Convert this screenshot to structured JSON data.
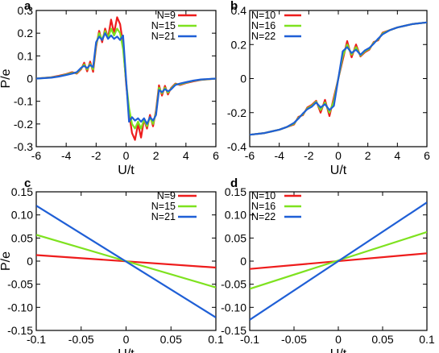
{
  "chart_data": [
    {
      "panel": "a",
      "type": "line",
      "xlabel": "U/t",
      "ylabel": "P/e",
      "xlim": [
        -6,
        6
      ],
      "ylim": [
        -0.3,
        0.3
      ],
      "xticks": [
        -6,
        -4,
        -2,
        0,
        2,
        4,
        6
      ],
      "yticks": [
        -0.3,
        -0.2,
        -0.1,
        0,
        0.1,
        0.2,
        0.3
      ],
      "ytick_labels": [
        "-0.3",
        "-0.2",
        "-0.1",
        "0",
        "0.1",
        "0.2",
        "0.3"
      ],
      "legend_position": "top-right",
      "series": [
        {
          "name": "N=9",
          "color": "#ee1c1c",
          "x": [
            -6,
            -5,
            -4.5,
            -4,
            -3.6,
            -3.3,
            -3,
            -2.8,
            -2.6,
            -2.4,
            -2.2,
            -2,
            -1.8,
            -1.6,
            -1.4,
            -1.2,
            -1,
            -0.8,
            -0.6,
            -0.4,
            -0.2,
            0,
            0.2,
            0.4,
            0.6,
            0.8,
            1,
            1.2,
            1.4,
            1.6,
            1.8,
            2,
            2.2,
            2.4,
            2.6,
            2.8,
            3,
            3.3,
            3.6,
            4,
            4.5,
            5,
            6
          ],
          "y": [
            0.0,
            0.006,
            0.012,
            0.02,
            0.028,
            0.022,
            0.042,
            0.07,
            0.032,
            0.075,
            0.03,
            0.14,
            0.21,
            0.16,
            0.22,
            0.18,
            0.26,
            0.2,
            0.27,
            0.24,
            0.15,
            -0.02,
            -0.15,
            -0.24,
            -0.27,
            -0.2,
            -0.26,
            -0.18,
            -0.22,
            -0.16,
            -0.21,
            -0.14,
            -0.03,
            -0.075,
            -0.032,
            -0.07,
            -0.042,
            -0.022,
            -0.028,
            -0.02,
            -0.012,
            -0.006,
            0.0
          ]
        },
        {
          "name": "N=15",
          "color": "#7ee21f",
          "x": [
            -6,
            -5,
            -4.5,
            -4,
            -3.6,
            -3.3,
            -3,
            -2.8,
            -2.6,
            -2.4,
            -2.2,
            -2,
            -1.8,
            -1.6,
            -1.4,
            -1.2,
            -1,
            -0.8,
            -0.6,
            -0.4,
            -0.2,
            0,
            0.2,
            0.4,
            0.6,
            0.8,
            1,
            1.2,
            1.4,
            1.6,
            1.8,
            2,
            2.2,
            2.4,
            2.6,
            2.8,
            3,
            3.3,
            3.6,
            4,
            4.5,
            5,
            6
          ],
          "y": [
            0.0,
            0.005,
            0.01,
            0.018,
            0.025,
            0.025,
            0.045,
            0.062,
            0.04,
            0.065,
            0.04,
            0.15,
            0.2,
            0.17,
            0.21,
            0.18,
            0.22,
            0.19,
            0.22,
            0.2,
            0.13,
            -0.01,
            -0.13,
            -0.2,
            -0.22,
            -0.19,
            -0.22,
            -0.18,
            -0.21,
            -0.17,
            -0.2,
            -0.15,
            -0.04,
            -0.065,
            -0.04,
            -0.062,
            -0.045,
            -0.025,
            -0.025,
            -0.018,
            -0.01,
            -0.005,
            0.0
          ]
        },
        {
          "name": "N=21",
          "color": "#1f5fd6",
          "x": [
            -6,
            -5,
            -4.5,
            -4,
            -3.6,
            -3.3,
            -3,
            -2.8,
            -2.6,
            -2.4,
            -2.2,
            -2,
            -1.8,
            -1.6,
            -1.4,
            -1.2,
            -1,
            -0.8,
            -0.6,
            -0.4,
            -0.2,
            0,
            0.2,
            0.4,
            0.6,
            0.8,
            1,
            1.2,
            1.4,
            1.6,
            1.8,
            2,
            2.2,
            2.4,
            2.6,
            2.8,
            3,
            3.3,
            3.6,
            4,
            4.5,
            5,
            6
          ],
          "y": [
            0.0,
            0.004,
            0.009,
            0.016,
            0.022,
            0.028,
            0.048,
            0.056,
            0.046,
            0.06,
            0.05,
            0.16,
            0.185,
            0.17,
            0.2,
            0.175,
            0.19,
            0.175,
            0.185,
            0.17,
            0.19,
            0.0,
            -0.19,
            -0.17,
            -0.185,
            -0.175,
            -0.19,
            -0.175,
            -0.2,
            -0.17,
            -0.185,
            -0.16,
            -0.05,
            -0.06,
            -0.046,
            -0.056,
            -0.048,
            -0.028,
            -0.022,
            -0.016,
            -0.009,
            -0.004,
            0.0
          ]
        }
      ]
    },
    {
      "panel": "b",
      "type": "line",
      "xlabel": "U/t",
      "ylabel": "",
      "xlim": [
        -6,
        6
      ],
      "ylim": [
        -0.4,
        0.4
      ],
      "xticks": [
        -6,
        -4,
        -2,
        0,
        2,
        4,
        6
      ],
      "yticks": [
        -0.4,
        -0.2,
        0,
        0.2,
        0.4
      ],
      "ytick_labels": [
        "-0.4",
        "-0.2",
        "0",
        "0.2",
        "0.4"
      ],
      "legend_position": "top-left",
      "series": [
        {
          "name": "N=10",
          "color": "#ee1c1c",
          "x": [
            -6,
            -5,
            -4.5,
            -4,
            -3.5,
            -3,
            -2.7,
            -2.4,
            -2.1,
            -1.8,
            -1.5,
            -1.2,
            -0.9,
            -0.6,
            -0.3,
            0,
            0.3,
            0.6,
            0.9,
            1.2,
            1.5,
            1.8,
            2.1,
            2.4,
            2.7,
            3,
            3.5,
            4,
            4.5,
            5,
            6
          ],
          "y": [
            -0.33,
            -0.32,
            -0.31,
            -0.3,
            -0.285,
            -0.27,
            -0.225,
            -0.215,
            -0.17,
            -0.155,
            -0.13,
            -0.2,
            -0.125,
            -0.22,
            -0.11,
            0.0,
            0.11,
            0.22,
            0.125,
            0.2,
            0.13,
            0.155,
            0.17,
            0.215,
            0.225,
            0.27,
            0.285,
            0.3,
            0.31,
            0.32,
            0.33
          ]
        },
        {
          "name": "N=16",
          "color": "#7ee21f",
          "x": [
            -6,
            -5,
            -4.5,
            -4,
            -3.5,
            -3,
            -2.7,
            -2.4,
            -2.1,
            -1.8,
            -1.5,
            -1.2,
            -0.9,
            -0.6,
            -0.3,
            0,
            0.3,
            0.6,
            0.9,
            1.2,
            1.5,
            1.8,
            2.1,
            2.4,
            2.7,
            3,
            3.5,
            4,
            4.5,
            5,
            6
          ],
          "y": [
            -0.33,
            -0.32,
            -0.31,
            -0.3,
            -0.285,
            -0.265,
            -0.23,
            -0.21,
            -0.175,
            -0.16,
            -0.135,
            -0.185,
            -0.14,
            -0.2,
            -0.13,
            0.0,
            0.13,
            0.2,
            0.14,
            0.185,
            0.135,
            0.16,
            0.175,
            0.21,
            0.23,
            0.265,
            0.285,
            0.3,
            0.31,
            0.32,
            0.33
          ]
        },
        {
          "name": "N=22",
          "color": "#1f5fd6",
          "x": [
            -6,
            -5,
            -4.5,
            -4,
            -3.5,
            -3,
            -2.7,
            -2.4,
            -2.1,
            -1.8,
            -1.5,
            -1.2,
            -0.9,
            -0.6,
            -0.3,
            0,
            0.3,
            0.6,
            0.9,
            1.2,
            1.5,
            1.8,
            2.1,
            2.4,
            2.7,
            3,
            3.5,
            4,
            4.5,
            5,
            6
          ],
          "y": [
            -0.33,
            -0.32,
            -0.31,
            -0.3,
            -0.285,
            -0.26,
            -0.235,
            -0.205,
            -0.18,
            -0.165,
            -0.14,
            -0.17,
            -0.15,
            -0.185,
            -0.16,
            0.0,
            0.16,
            0.185,
            0.15,
            0.17,
            0.14,
            0.165,
            0.18,
            0.205,
            0.235,
            0.26,
            0.285,
            0.3,
            0.31,
            0.32,
            0.33
          ]
        }
      ]
    },
    {
      "panel": "c",
      "type": "line",
      "xlabel": "U/t",
      "ylabel": "P/e",
      "xlim": [
        -0.1,
        0.1
      ],
      "ylim": [
        -0.15,
        0.15
      ],
      "xticks": [
        -0.1,
        -0.05,
        0,
        0.05,
        0.1
      ],
      "xtick_labels": [
        "-0.1",
        "-0.05",
        "0",
        "0.05",
        "0.1"
      ],
      "yticks": [
        -0.15,
        -0.1,
        -0.05,
        0,
        0.05,
        0.1,
        0.15
      ],
      "ytick_labels": [
        "-0.15",
        "-0.10",
        "-0.05",
        "0",
        "0.05",
        "0.10",
        "0.15"
      ],
      "legend_position": "top-right",
      "series": [
        {
          "name": "N=9",
          "color": "#ee1c1c",
          "x": [
            -0.1,
            0.1
          ],
          "y": [
            0.013,
            -0.014
          ]
        },
        {
          "name": "N=15",
          "color": "#7ee21f",
          "x": [
            -0.1,
            0.1
          ],
          "y": [
            0.057,
            -0.057
          ]
        },
        {
          "name": "N=21",
          "color": "#1f5fd6",
          "x": [
            -0.1,
            0.1
          ],
          "y": [
            0.12,
            -0.122
          ]
        }
      ]
    },
    {
      "panel": "d",
      "type": "line",
      "xlabel": "U/t",
      "ylabel": "",
      "xlim": [
        -0.1,
        0.1
      ],
      "ylim": [
        -0.15,
        0.15
      ],
      "xticks": [
        -0.1,
        -0.05,
        0,
        0.05,
        0.1
      ],
      "xtick_labels": [
        "-0.1",
        "-0.05",
        "0",
        "0.05",
        "0.1"
      ],
      "yticks": [
        -0.15,
        -0.1,
        -0.05,
        0,
        0.05,
        0.1,
        0.15
      ],
      "ytick_labels": [
        "-0.15",
        "-0.10",
        "-0.05",
        "0",
        "0.05",
        "0.10",
        "0.15"
      ],
      "legend_position": "top-left",
      "series": [
        {
          "name": "N=10",
          "color": "#ee1c1c",
          "x": [
            -0.1,
            0.1
          ],
          "y": [
            -0.017,
            0.017
          ]
        },
        {
          "name": "N=16",
          "color": "#7ee21f",
          "x": [
            -0.1,
            0.1
          ],
          "y": [
            -0.06,
            0.063
          ]
        },
        {
          "name": "N=22",
          "color": "#1f5fd6",
          "x": [
            -0.1,
            0.1
          ],
          "y": [
            -0.127,
            0.127
          ]
        }
      ]
    }
  ]
}
